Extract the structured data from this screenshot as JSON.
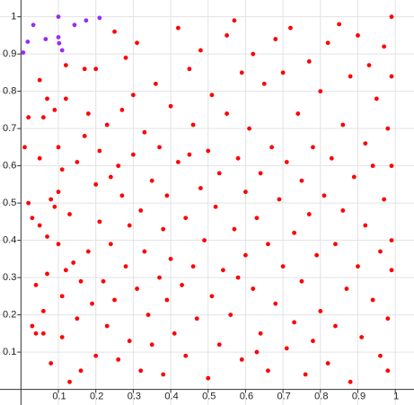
{
  "chart_data": {
    "type": "scatter",
    "xlim": [
      -0.056,
      1.05
    ],
    "ylim": [
      -0.042,
      1.045
    ],
    "xticks": [
      0.1,
      0.2,
      0.3,
      0.4,
      0.5,
      0.6,
      0.7,
      0.8,
      0.9,
      1
    ],
    "yticks": [
      0.1,
      0.2,
      0.3,
      0.4,
      0.5,
      0.6,
      0.7,
      0.8,
      0.9,
      1
    ],
    "grid": true,
    "series": [
      {
        "color": "#ff0000",
        "x": [
          0.01,
          0.02,
          0.02,
          0.03,
          0.03,
          0.04,
          0.04,
          0.05,
          0.05,
          0.05,
          0.06,
          0.06,
          0.06,
          0.07,
          0.07,
          0.07,
          0.08,
          0.08,
          0.09,
          0.09,
          0.1,
          0.1,
          0.1,
          0.11,
          0.11,
          0.11,
          0.12,
          0.12,
          0.13,
          0.13,
          0.14,
          0.15,
          0.15,
          0.16,
          0.16,
          0.17,
          0.17,
          0.18,
          0.18,
          0.19,
          0.2,
          0.2,
          0.2,
          0.21,
          0.21,
          0.22,
          0.23,
          0.23,
          0.24,
          0.24,
          0.25,
          0.25,
          0.26,
          0.26,
          0.27,
          0.28,
          0.28,
          0.29,
          0.29,
          0.3,
          0.3,
          0.31,
          0.31,
          0.32,
          0.32,
          0.33,
          0.33,
          0.34,
          0.35,
          0.35,
          0.36,
          0.37,
          0.37,
          0.38,
          0.38,
          0.39,
          0.39,
          0.4,
          0.4,
          0.41,
          0.42,
          0.42,
          0.43,
          0.44,
          0.44,
          0.45,
          0.46,
          0.46,
          0.47,
          0.48,
          0.48,
          0.49,
          0.5,
          0.5,
          0.51,
          0.51,
          0.52,
          0.53,
          0.53,
          0.54,
          0.55,
          0.55,
          0.56,
          0.57,
          0.57,
          0.58,
          0.59,
          0.59,
          0.6,
          0.6,
          0.61,
          0.62,
          0.62,
          0.63,
          0.64,
          0.64,
          0.65,
          0.66,
          0.66,
          0.67,
          0.68,
          0.68,
          0.69,
          0.7,
          0.7,
          0.71,
          0.71,
          0.72,
          0.73,
          0.73,
          0.74,
          0.75,
          0.75,
          0.76,
          0.77,
          0.77,
          0.78,
          0.78,
          0.79,
          0.8,
          0.8,
          0.81,
          0.82,
          0.82,
          0.83,
          0.84,
          0.84,
          0.85,
          0.86,
          0.86,
          0.87,
          0.88,
          0.88,
          0.89,
          0.9,
          0.9,
          0.91,
          0.92,
          0.92,
          0.93,
          0.94,
          0.94,
          0.95,
          0.96,
          0.96,
          0.97,
          0.97,
          0.98,
          0.98,
          0.99,
          0.99,
          0.99,
          0.99,
          0.99,
          0.98,
          0.45,
          0.12,
          0.27,
          0.63,
          0.58
        ],
        "values": [
          0.65,
          0.73,
          0.5,
          0.46,
          0.17,
          0.15,
          0.28,
          0.83,
          0.62,
          0.44,
          0.73,
          0.21,
          0.15,
          0.78,
          0.41,
          0.31,
          0.51,
          0.07,
          0.75,
          0.49,
          0.53,
          0.65,
          0.39,
          0.59,
          0.25,
          0.14,
          0.32,
          0.87,
          0.02,
          0.47,
          0.34,
          0.61,
          0.19,
          0.05,
          0.29,
          0.68,
          0.86,
          0.74,
          0.37,
          0.23,
          0.86,
          0.55,
          0.09,
          0.64,
          0.45,
          0.29,
          0.17,
          0.71,
          0.39,
          0.57,
          0.96,
          0.24,
          0.6,
          0.08,
          0.52,
          0.33,
          0.89,
          0.44,
          0.13,
          0.63,
          0.79,
          0.27,
          0.93,
          0.05,
          0.48,
          0.69,
          0.37,
          0.2,
          0.56,
          0.12,
          0.82,
          0.3,
          0.65,
          0.43,
          0.04,
          0.24,
          0.52,
          0.35,
          0.76,
          0.15,
          0.97,
          0.61,
          0.28,
          0.46,
          0.09,
          0.86,
          0.71,
          0.33,
          0.19,
          0.54,
          0.91,
          0.4,
          0.03,
          0.64,
          0.25,
          0.79,
          0.49,
          0.12,
          0.58,
          0.32,
          0.95,
          0.74,
          0.2,
          0.43,
          0.99,
          0.62,
          0.08,
          0.85,
          0.36,
          0.53,
          0.7,
          0.27,
          0.9,
          0.46,
          0.15,
          0.58,
          0.82,
          0.39,
          0.05,
          0.65,
          0.23,
          0.94,
          0.51,
          0.85,
          0.33,
          0.11,
          0.61,
          0.97,
          0.42,
          0.18,
          0.74,
          0.56,
          0.29,
          0.04,
          0.88,
          0.47,
          0.65,
          0.13,
          0.36,
          0.8,
          0.21,
          0.52,
          0.93,
          0.07,
          0.62,
          0.39,
          0.17,
          0.98,
          0.48,
          0.71,
          0.27,
          0.84,
          0.02,
          0.57,
          0.33,
          0.95,
          0.14,
          0.66,
          0.44,
          0.87,
          0.24,
          0.6,
          0.78,
          0.09,
          0.37,
          0.92,
          0.51,
          0.7,
          0.19,
          1.0,
          0.84,
          0.32,
          0.4,
          0.6,
          0.05,
          0.63,
          0.78,
          0.75,
          0.1,
          0.3
        ]
      },
      {
        "color": "#9a2bf5",
        "x": [
          0.006,
          0.018,
          0.033,
          0.066,
          0.1,
          0.1,
          0.102,
          0.11,
          0.143,
          0.174,
          0.21
        ],
        "values": [
          0.904,
          0.933,
          0.978,
          0.94,
          1.0,
          0.945,
          0.929,
          0.91,
          0.978,
          0.99,
          0.997
        ]
      }
    ]
  }
}
